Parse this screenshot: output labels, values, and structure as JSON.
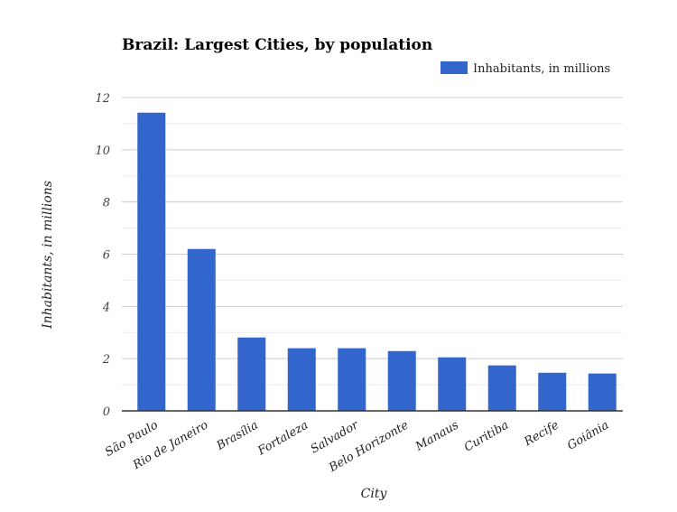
{
  "chart_data": {
    "type": "bar",
    "title": "Brazil: Largest Cities, by population",
    "xlabel": "City",
    "ylabel": "Inhabitants, in millions",
    "categories": [
      "São Paulo",
      "Rio de Janeiro",
      "Brasília",
      "Fortaleza",
      "Salvador",
      "Belo Horizonte",
      "Manaus",
      "Curitiba",
      "Recife",
      "Goiânia"
    ],
    "series": [
      {
        "name": "Inhabitants, in millions",
        "values": [
          11.42,
          6.2,
          2.81,
          2.4,
          2.4,
          2.29,
          2.05,
          1.74,
          1.46,
          1.43
        ]
      }
    ],
    "ylim": [
      0,
      12
    ],
    "yticks": [
      0,
      2,
      4,
      6,
      8,
      10,
      12
    ],
    "grid": true,
    "minor_grid": true,
    "legend": "top-right",
    "colors": {
      "bar": "#3366cc",
      "grid": "#cccccc",
      "minor_grid": "#ebebeb",
      "axis": "#333333"
    }
  }
}
